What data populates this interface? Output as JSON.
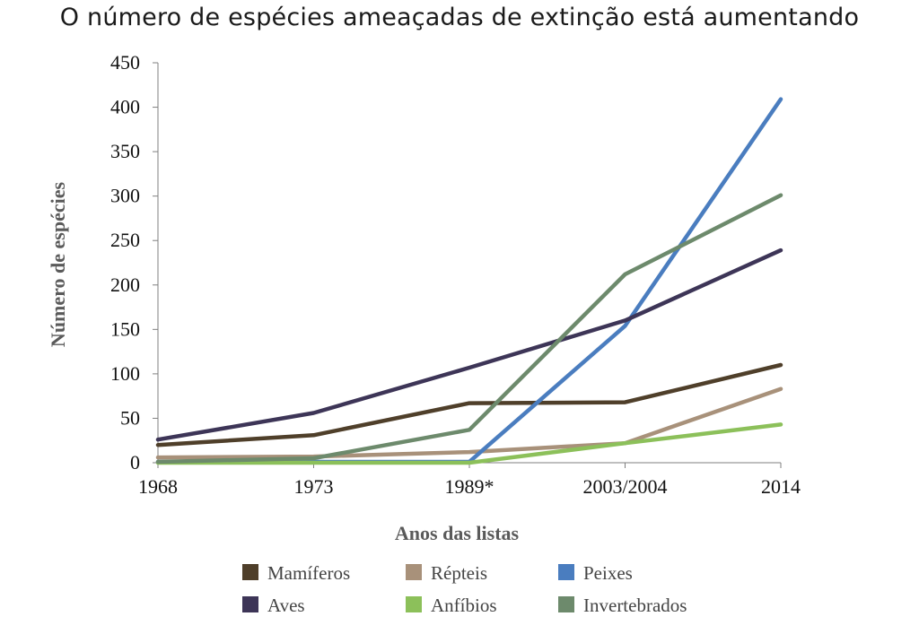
{
  "title": "O número de espécies ameaçadas de extinção está aumentando",
  "chart_data": {
    "type": "line",
    "title": "O número de espécies ameaçadas de extinção está aumentando",
    "xlabel": "Anos das listas",
    "ylabel": "Número de espécies",
    "categories": [
      "1968",
      "1973",
      "1989*",
      "2003/2004",
      "2014"
    ],
    "ylim": [
      0,
      450
    ],
    "yticks": [
      "0",
      "50",
      "100",
      "150",
      "200",
      "250",
      "300",
      "350",
      "400",
      "450"
    ],
    "grid": false,
    "legend_position": "bottom",
    "series": [
      {
        "name": "Mamíferos",
        "color": "#4f3f2a",
        "values": [
          20,
          31,
          67,
          68,
          110
        ]
      },
      {
        "name": "Répteis",
        "color": "#a8917a",
        "values": [
          6,
          7,
          12,
          22,
          83
        ]
      },
      {
        "name": "Peixes",
        "color": "#4a7dbf",
        "values": [
          1,
          1,
          1,
          154,
          409
        ]
      },
      {
        "name": "Aves",
        "color": "#3d3557",
        "values": [
          26,
          56,
          107,
          160,
          239
        ]
      },
      {
        "name": "Anfíbios",
        "color": "#8cc05a",
        "values": [
          0,
          0,
          0,
          22,
          43
        ]
      },
      {
        "name": "Invertebrados",
        "color": "#6d8a6c",
        "values": [
          1,
          5,
          37,
          212,
          301
        ]
      }
    ],
    "legend_order": [
      "Mamíferos",
      "Répteis",
      "Peixes",
      "Aves",
      "Anfíbios",
      "Invertebrados"
    ]
  }
}
